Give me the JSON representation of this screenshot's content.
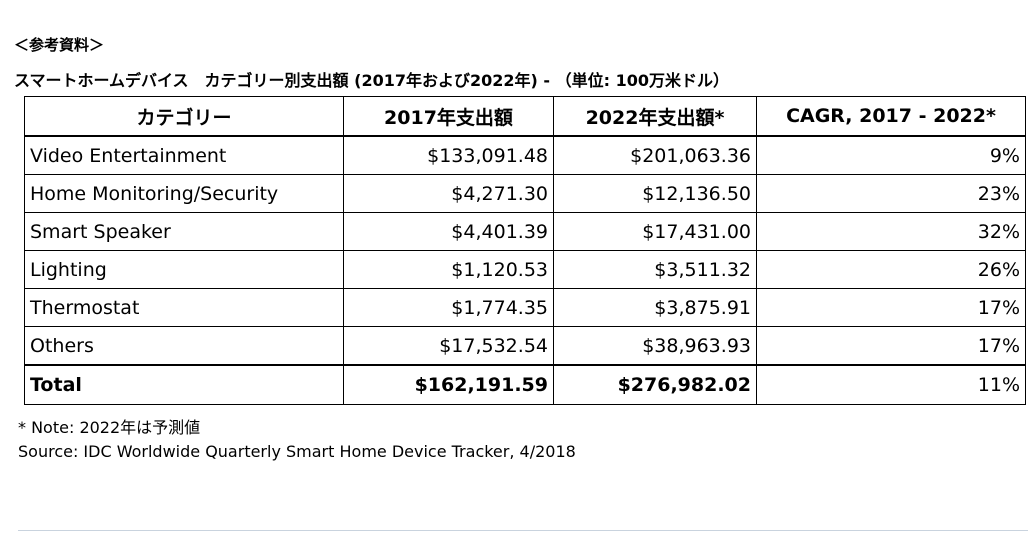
{
  "reference_label": "＜参考資料＞",
  "table_title": "スマートホームデバイス　カテゴリー別支出額 (2017年および2022年) - （単位: 100万米ドル）",
  "table": {
    "headers": [
      "カテゴリー",
      "2017年支出額",
      "2022年支出額*",
      "CAGR, 2017 - 2022*"
    ],
    "rows": [
      {
        "category": "Video Entertainment",
        "spend_2017": "$133,091.48",
        "spend_2022": "$201,063.36",
        "cagr": "9%"
      },
      {
        "category": "Home Monitoring/Security",
        "spend_2017": "$4,271.30",
        "spend_2022": "$12,136.50",
        "cagr": "23%"
      },
      {
        "category": "Smart Speaker",
        "spend_2017": "$4,401.39",
        "spend_2022": "$17,431.00",
        "cagr": "32%"
      },
      {
        "category": "Lighting",
        "spend_2017": "$1,120.53",
        "spend_2022": "$3,511.32",
        "cagr": "26%"
      },
      {
        "category": "Thermostat",
        "spend_2017": "$1,774.35",
        "spend_2022": "$3,875.91",
        "cagr": "17%"
      },
      {
        "category": "Others",
        "spend_2017": "$17,532.54",
        "spend_2022": "$38,963.93",
        "cagr": "17%"
      }
    ],
    "total": {
      "category": "Total",
      "spend_2017": "$162,191.59",
      "spend_2022": "$276,982.02",
      "cagr": "11%"
    }
  },
  "note": "* Note: 2022年は予測値",
  "source": "Source: IDC Worldwide Quarterly Smart Home Device Tracker, 4/2018"
}
